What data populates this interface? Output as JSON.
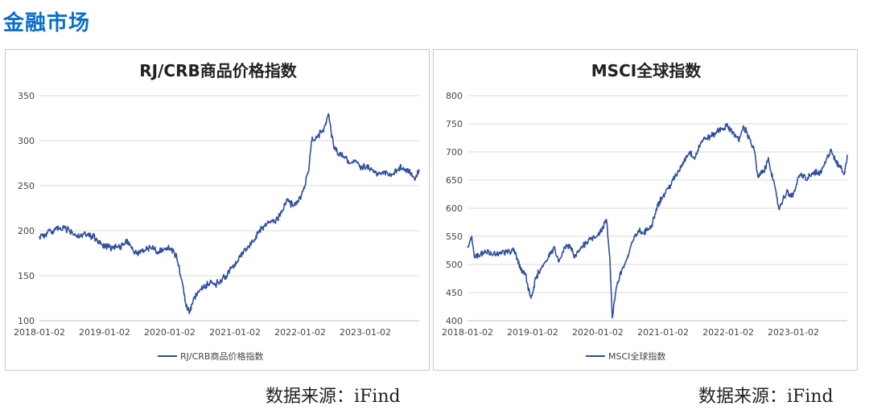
{
  "section_title": "金融市场",
  "sources": {
    "left": "数据来源：iFind",
    "right": "数据来源：iFind"
  },
  "colors": {
    "accent": "#0b6fc9",
    "series": "#2f4f9c",
    "grid": "#d9d9d9"
  },
  "chart_data": [
    {
      "type": "line",
      "title": "RJ/CRB商品价格指数",
      "xlabel": "",
      "ylabel": "",
      "ylim": [
        100,
        350
      ],
      "yticks": [
        100,
        150,
        200,
        250,
        300,
        350
      ],
      "xlim": [
        "2018-01-02",
        "2023-10-31"
      ],
      "xticks": [
        "2018-01-02",
        "2019-01-02",
        "2020-01-02",
        "2021-01-02",
        "2022-01-02",
        "2023-01-02"
      ],
      "grid": true,
      "legend_position": "bottom",
      "series": [
        {
          "name": "RJ/CRB商品价格指数",
          "x": [
            "2018-01-02",
            "2018-02-15",
            "2018-04-01",
            "2018-05-20",
            "2018-07-01",
            "2018-08-15",
            "2018-10-01",
            "2018-11-15",
            "2019-01-02",
            "2019-02-15",
            "2019-04-01",
            "2019-05-15",
            "2019-06-20",
            "2019-08-01",
            "2019-09-15",
            "2019-11-01",
            "2019-12-15",
            "2020-01-10",
            "2020-02-10",
            "2020-03-10",
            "2020-03-31",
            "2020-04-21",
            "2020-05-15",
            "2020-06-15",
            "2020-07-15",
            "2020-08-15",
            "2020-09-15",
            "2020-10-15",
            "2020-11-15",
            "2020-12-15",
            "2021-01-15",
            "2021-02-20",
            "2021-03-20",
            "2021-04-20",
            "2021-05-15",
            "2021-06-15",
            "2021-07-15",
            "2021-08-20",
            "2021-09-20",
            "2021-10-20",
            "2021-11-20",
            "2021-12-20",
            "2022-01-20",
            "2022-02-20",
            "2022-03-08",
            "2022-04-10",
            "2022-05-10",
            "2022-06-09",
            "2022-07-10",
            "2022-08-10",
            "2022-09-10",
            "2022-10-10",
            "2022-11-10",
            "2022-12-10",
            "2023-01-10",
            "2023-02-10",
            "2023-03-10",
            "2023-04-10",
            "2023-05-10",
            "2023-06-10",
            "2023-07-10",
            "2023-08-10",
            "2023-09-10",
            "2023-10-10",
            "2023-10-31"
          ],
          "values": [
            194,
            197,
            201,
            203,
            198,
            193,
            196,
            191,
            181,
            182,
            183,
            188,
            175,
            177,
            182,
            177,
            181,
            180,
            171,
            145,
            120,
            108,
            125,
            132,
            138,
            142,
            141,
            145,
            150,
            160,
            165,
            178,
            183,
            190,
            200,
            205,
            210,
            212,
            220,
            235,
            228,
            232,
            245,
            268,
            300,
            305,
            312,
            330,
            292,
            285,
            282,
            275,
            278,
            270,
            272,
            268,
            262,
            266,
            262,
            264,
            270,
            268,
            265,
            258,
            268
          ]
        }
      ]
    },
    {
      "type": "line",
      "title": "MSCI全球指数",
      "xlabel": "",
      "ylabel": "",
      "ylim": [
        400,
        800
      ],
      "yticks": [
        400,
        450,
        500,
        550,
        600,
        650,
        700,
        750,
        800
      ],
      "xlim": [
        "2018-01-02",
        "2023-10-31"
      ],
      "xticks": [
        "2018-01-02",
        "2019-01-02",
        "2020-01-02",
        "2021-01-02",
        "2022-01-02",
        "2023-01-02"
      ],
      "grid": true,
      "legend_position": "bottom",
      "series": [
        {
          "name": "MSCI全球指数",
          "x": [
            "2018-01-02",
            "2018-01-26",
            "2018-02-10",
            "2018-03-15",
            "2018-04-15",
            "2018-05-15",
            "2018-06-15",
            "2018-07-15",
            "2018-08-15",
            "2018-09-20",
            "2018-10-25",
            "2018-11-20",
            "2018-12-24",
            "2019-01-20",
            "2019-02-20",
            "2019-03-20",
            "2019-04-30",
            "2019-05-30",
            "2019-06-30",
            "2019-07-30",
            "2019-08-25",
            "2019-09-30",
            "2019-10-30",
            "2019-11-30",
            "2019-12-30",
            "2020-01-31",
            "2020-02-19",
            "2020-03-10",
            "2020-03-23",
            "2020-04-15",
            "2020-05-15",
            "2020-06-15",
            "2020-07-15",
            "2020-08-15",
            "2020-09-15",
            "2020-10-30",
            "2020-11-30",
            "2020-12-30",
            "2021-01-30",
            "2021-02-28",
            "2021-03-30",
            "2021-04-30",
            "2021-05-30",
            "2021-06-30",
            "2021-07-30",
            "2021-08-30",
            "2021-09-30",
            "2021-10-30",
            "2021-11-15",
            "2021-12-30",
            "2022-01-30",
            "2022-02-28",
            "2022-03-30",
            "2022-04-30",
            "2022-05-30",
            "2022-06-17",
            "2022-07-30",
            "2022-08-15",
            "2022-09-30",
            "2022-10-12",
            "2022-11-30",
            "2022-12-30",
            "2023-01-30",
            "2023-02-28",
            "2023-03-15",
            "2023-04-30",
            "2023-05-30",
            "2023-06-30",
            "2023-07-31",
            "2023-08-30",
            "2023-09-30",
            "2023-10-15",
            "2023-10-31"
          ],
          "values": [
            530,
            550,
            512,
            518,
            522,
            519,
            517,
            523,
            520,
            527,
            492,
            485,
            440,
            475,
            495,
            505,
            530,
            505,
            530,
            535,
            512,
            530,
            540,
            548,
            552,
            565,
            580,
            510,
            405,
            460,
            490,
            510,
            540,
            560,
            555,
            570,
            605,
            620,
            635,
            650,
            665,
            685,
            700,
            690,
            715,
            725,
            728,
            735,
            740,
            745,
            735,
            720,
            745,
            725,
            700,
            655,
            670,
            690,
            620,
            600,
            630,
            620,
            655,
            660,
            650,
            665,
            660,
            680,
            705,
            680,
            670,
            660,
            695
          ]
        }
      ]
    }
  ]
}
